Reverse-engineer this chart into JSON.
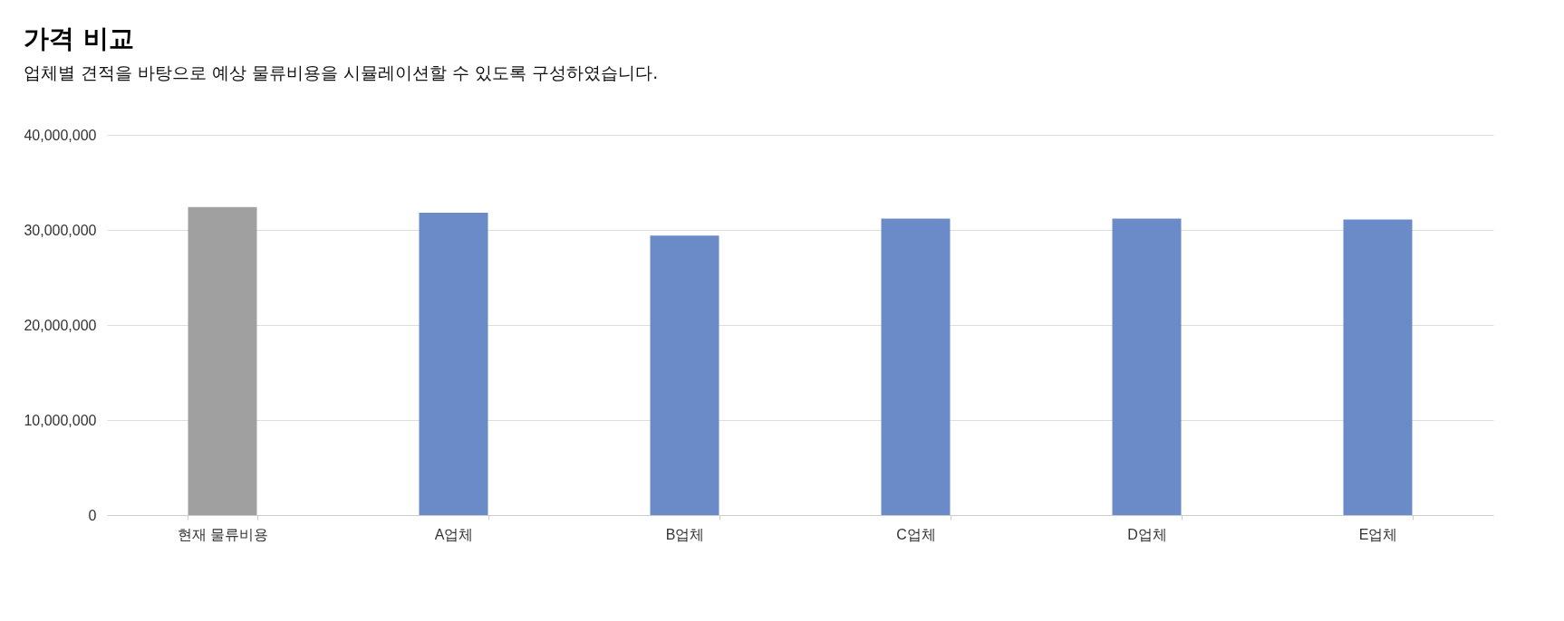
{
  "chart_data": {
    "type": "bar",
    "title": "가격 비교",
    "subtitle": "업체별 견적을 바탕으로 예상 물류비용을 시뮬레이션할 수 있도록 구성하였습니다.",
    "categories": [
      "현재 물류비용",
      "A업체",
      "B업체",
      "C업체",
      "D업체",
      "E업체"
    ],
    "values": [
      32400000,
      31800000,
      29400000,
      31200000,
      31200000,
      31100000
    ],
    "colors": [
      "#a0a0a0",
      "#6a8bc7",
      "#6a8bc7",
      "#6a8bc7",
      "#6a8bc7",
      "#6a8bc7"
    ],
    "ylim": [
      0,
      40000000
    ],
    "yticks": [
      0,
      {
        "value": 10000000,
        "label": "10,000,000"
      },
      {
        "value": 20000000,
        "label": "20,000,000"
      },
      {
        "value": 30000000,
        "label": "30,000,000"
      },
      {
        "value": 40000000,
        "label": "40,000,000"
      }
    ],
    "grid": "y"
  }
}
